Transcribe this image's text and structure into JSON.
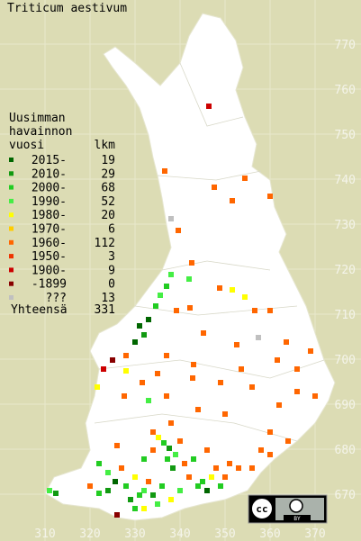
{
  "title": "Triticum aestivum",
  "legend": {
    "header": [
      "Uusimman",
      "havainnon",
      "vuosi"
    ],
    "count_header": "lkm",
    "rows": [
      {
        "label": "2015-",
        "count": 19,
        "color": "#006600"
      },
      {
        "label": "2010-",
        "count": 29,
        "color": "#119911"
      },
      {
        "label": "2000-",
        "count": 68,
        "color": "#22cc22"
      },
      {
        "label": "1990-",
        "count": 52,
        "color": "#44ee44"
      },
      {
        "label": "1980-",
        "count": 20,
        "color": "#ffff00"
      },
      {
        "label": "1970-",
        "count": 6,
        "color": "#ffcc00"
      },
      {
        "label": "1960-",
        "count": 112,
        "color": "#ff6600"
      },
      {
        "label": "1950-",
        "count": 3,
        "color": "#ee3300"
      },
      {
        "label": "1900-",
        "count": 9,
        "color": "#cc0000"
      },
      {
        "label": "-1899",
        "count": 0,
        "color": "#880000"
      },
      {
        "label": "???",
        "count": 13,
        "color": "#c0c0c0"
      }
    ],
    "total_label": "Yhteensä",
    "total": 331
  },
  "axes": {
    "yticks": [
      670,
      680,
      690,
      700,
      710,
      720,
      730,
      740,
      750,
      760,
      770
    ],
    "xticks": [
      310,
      320,
      330,
      340,
      350,
      360,
      370
    ]
  },
  "badge": {
    "cc": "cc",
    "by": "BY"
  }
}
